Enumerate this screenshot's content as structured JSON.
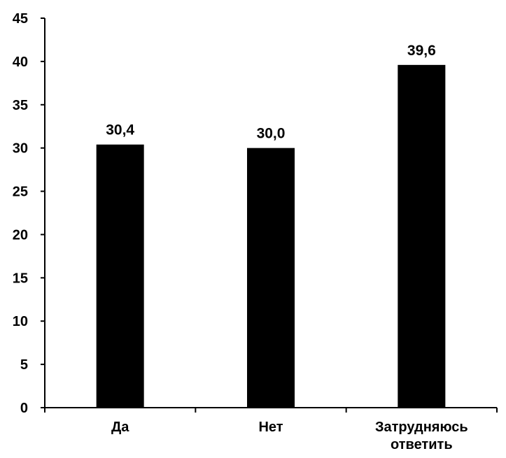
{
  "chart_data": {
    "type": "bar",
    "categories": [
      [
        "Да"
      ],
      [
        "Нет"
      ],
      [
        "Затрудняюсь",
        "ответить"
      ]
    ],
    "values": [
      30.4,
      30.0,
      39.6
    ],
    "value_labels": [
      "30,4",
      "30,0",
      "39,6"
    ],
    "yticks": [
      "0",
      "5",
      "10",
      "15",
      "20",
      "25",
      "30",
      "35",
      "40",
      "45"
    ],
    "ylim": [
      0,
      45
    ],
    "title": "",
    "xlabel": "",
    "ylabel": "",
    "grid": false,
    "bar_color": "#000000"
  }
}
